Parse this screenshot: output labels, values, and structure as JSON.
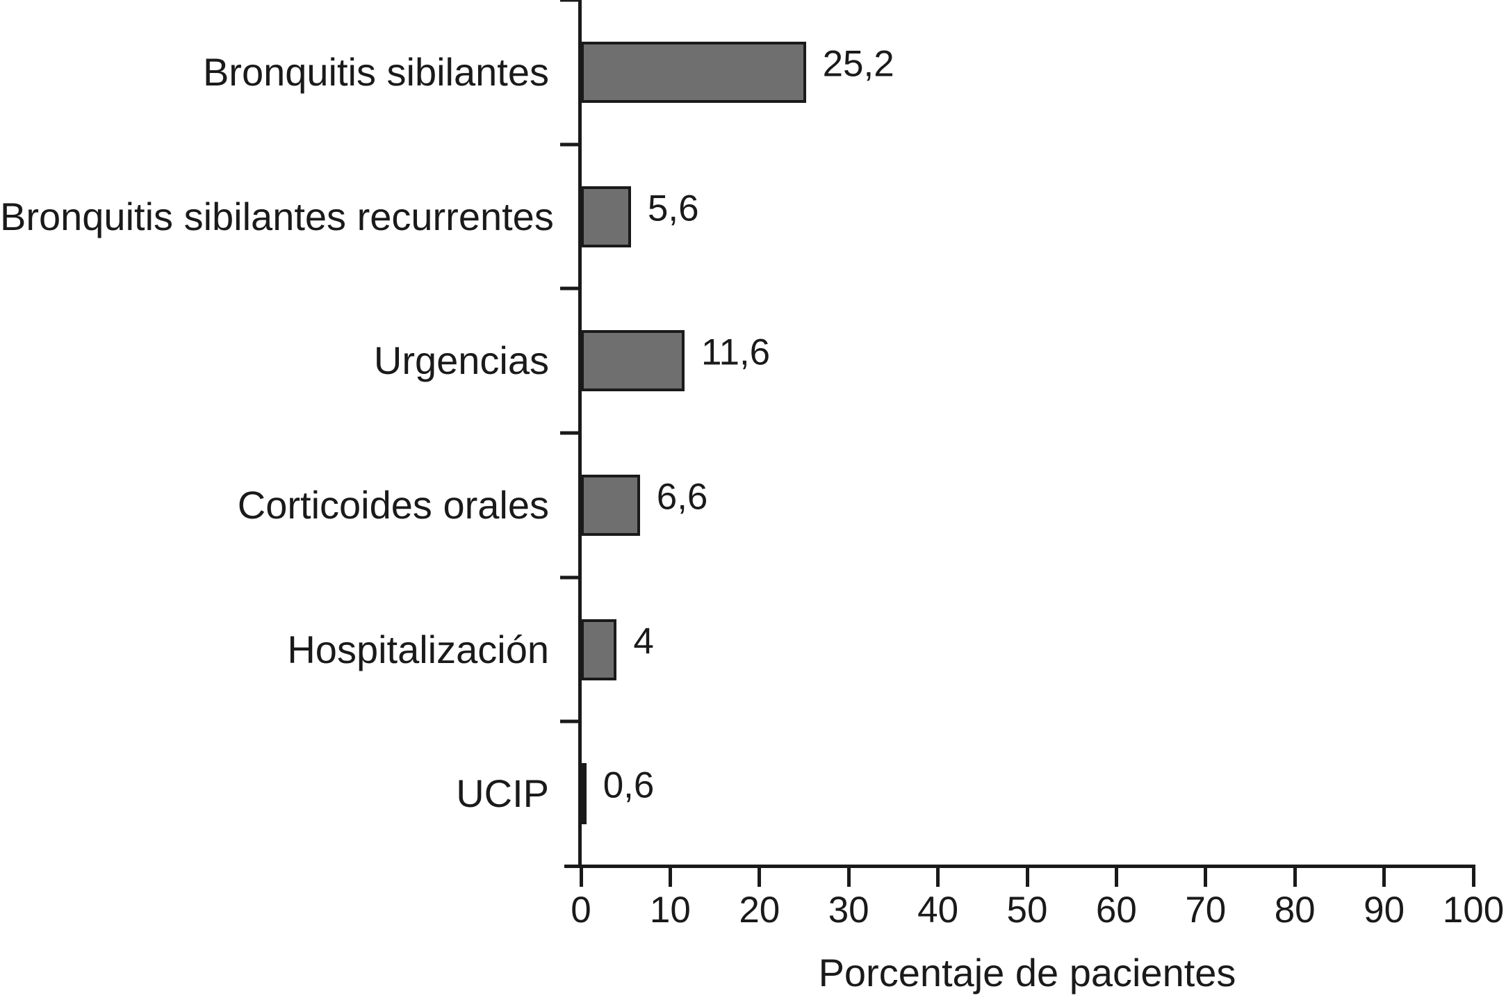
{
  "chart_data": {
    "type": "bar",
    "orientation": "horizontal",
    "title": "",
    "categories": [
      "Bronquitis sibilantes",
      "Bronquitis sibilantes recurrentes",
      "Urgencias",
      "Corticoides orales",
      "Hospitalización",
      "UCIP"
    ],
    "values": [
      25.2,
      5.6,
      11.6,
      6.6,
      4,
      0.6
    ],
    "value_labels": [
      "25,2",
      "5,6",
      "11,6",
      "6,6",
      "4",
      "0,6"
    ],
    "xlabel": "Porcentaje de pacientes",
    "xlim": [
      0,
      100
    ],
    "xticks": [
      0,
      10,
      20,
      30,
      40,
      50,
      60,
      70,
      80,
      90,
      100
    ],
    "xtick_labels": [
      "0",
      "10",
      "20",
      "30",
      "40",
      "50",
      "60",
      "70",
      "80",
      "90",
      "100"
    ],
    "grid": false,
    "legend": false,
    "bar_color": "#6f6f6f",
    "bar_border_color": "#1a1a1a",
    "axis_color": "#1a1a1a",
    "text_color": "#1a1a1a",
    "background_color": "#ffffff"
  }
}
